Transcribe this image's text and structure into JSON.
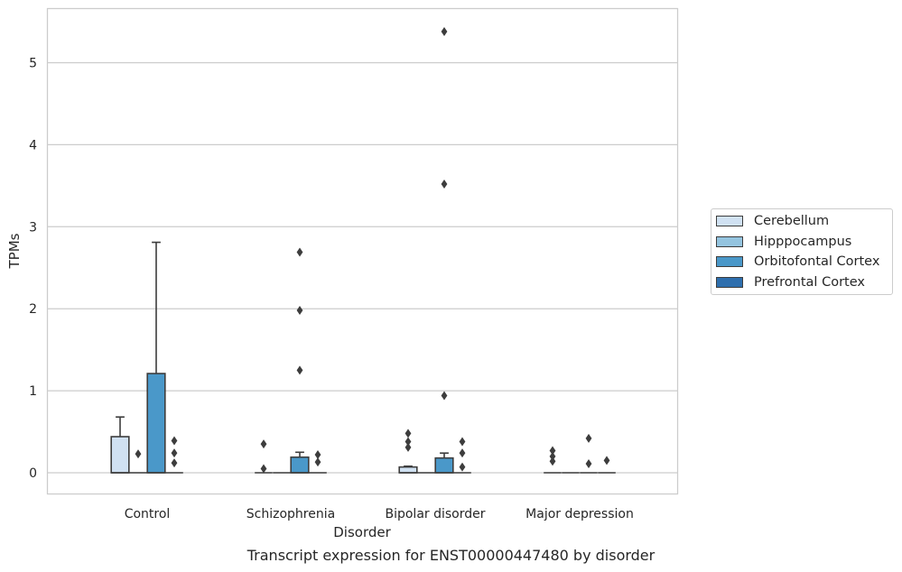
{
  "chart_data": {
    "type": "box",
    "xlabel": "Disorder",
    "ylabel": "TPMs",
    "ylim": [
      -0.27,
      5.67
    ],
    "yticks": [
      0,
      1,
      2,
      3,
      4,
      5
    ],
    "categories": [
      "Control",
      "Schizophrenia",
      "Bipolar disorder",
      "Major depression"
    ],
    "series": [
      {
        "name": "Cerebellum",
        "color": "#d0e1f2",
        "boxes": [
          {
            "q1": 0,
            "median": 0,
            "q3": 0.44,
            "whisker_low": 0,
            "whisker_high": 0.68,
            "outliers": []
          },
          {
            "q1": 0,
            "median": 0,
            "q3": 0,
            "whisker_low": 0,
            "whisker_high": 0,
            "outliers": [
              0.35,
              0.05
            ]
          },
          {
            "q1": 0,
            "median": 0,
            "q3": 0.07,
            "whisker_low": 0,
            "whisker_high": 0.08,
            "outliers": [
              0.48,
              0.38,
              0.31
            ]
          },
          {
            "q1": 0,
            "median": 0,
            "q3": 0,
            "whisker_low": 0,
            "whisker_high": 0,
            "outliers": [
              0.27,
              0.2,
              0.14
            ]
          }
        ]
      },
      {
        "name": "Hipppocampus",
        "color": "#94c4df",
        "boxes": [
          {
            "q1": 0,
            "median": 0,
            "q3": 0,
            "whisker_low": 0,
            "whisker_high": 0,
            "outliers": [
              0.23
            ]
          },
          {
            "q1": 0,
            "median": 0,
            "q3": 0,
            "whisker_low": 0,
            "whisker_high": 0,
            "outliers": []
          },
          {
            "q1": 0,
            "median": 0,
            "q3": 0,
            "whisker_low": 0,
            "whisker_high": 0,
            "outliers": []
          },
          {
            "q1": 0,
            "median": 0,
            "q3": 0,
            "whisker_low": 0,
            "whisker_high": 0,
            "outliers": []
          }
        ]
      },
      {
        "name": "Orbitofontal Cortex",
        "color": "#4a98c9",
        "boxes": [
          {
            "q1": 0,
            "median": 0,
            "q3": 1.21,
            "whisker_low": 0,
            "whisker_high": 2.81,
            "outliers": []
          },
          {
            "q1": 0,
            "median": 0,
            "q3": 0.19,
            "whisker_low": 0,
            "whisker_high": 0.25,
            "outliers": [
              2.69,
              1.98,
              1.25
            ]
          },
          {
            "q1": 0,
            "median": 0,
            "q3": 0.18,
            "whisker_low": 0,
            "whisker_high": 0.24,
            "outliers": [
              5.38,
              3.52,
              0.94
            ]
          },
          {
            "q1": 0,
            "median": 0,
            "q3": 0,
            "whisker_low": 0,
            "whisker_high": 0,
            "outliers": [
              0.42,
              0.11
            ]
          }
        ]
      },
      {
        "name": "Prefrontal Cortex",
        "color": "#2e6fae",
        "boxes": [
          {
            "q1": 0,
            "median": 0,
            "q3": 0,
            "whisker_low": 0,
            "whisker_high": 0,
            "outliers": [
              0.39,
              0.24,
              0.12
            ]
          },
          {
            "q1": 0,
            "median": 0,
            "q3": 0,
            "whisker_low": 0,
            "whisker_high": 0,
            "outliers": [
              0.22,
              0.13
            ]
          },
          {
            "q1": 0,
            "median": 0,
            "q3": 0,
            "whisker_low": 0,
            "whisker_high": 0,
            "outliers": [
              0.38,
              0.24,
              0.07
            ]
          },
          {
            "q1": 0,
            "median": 0,
            "q3": 0,
            "whisker_low": 0,
            "whisker_high": 0,
            "outliers": [
              0.15
            ]
          }
        ]
      }
    ],
    "grid": true,
    "legend_position": "right"
  },
  "caption": "Transcript expression for ENST00000447480 by disorder"
}
